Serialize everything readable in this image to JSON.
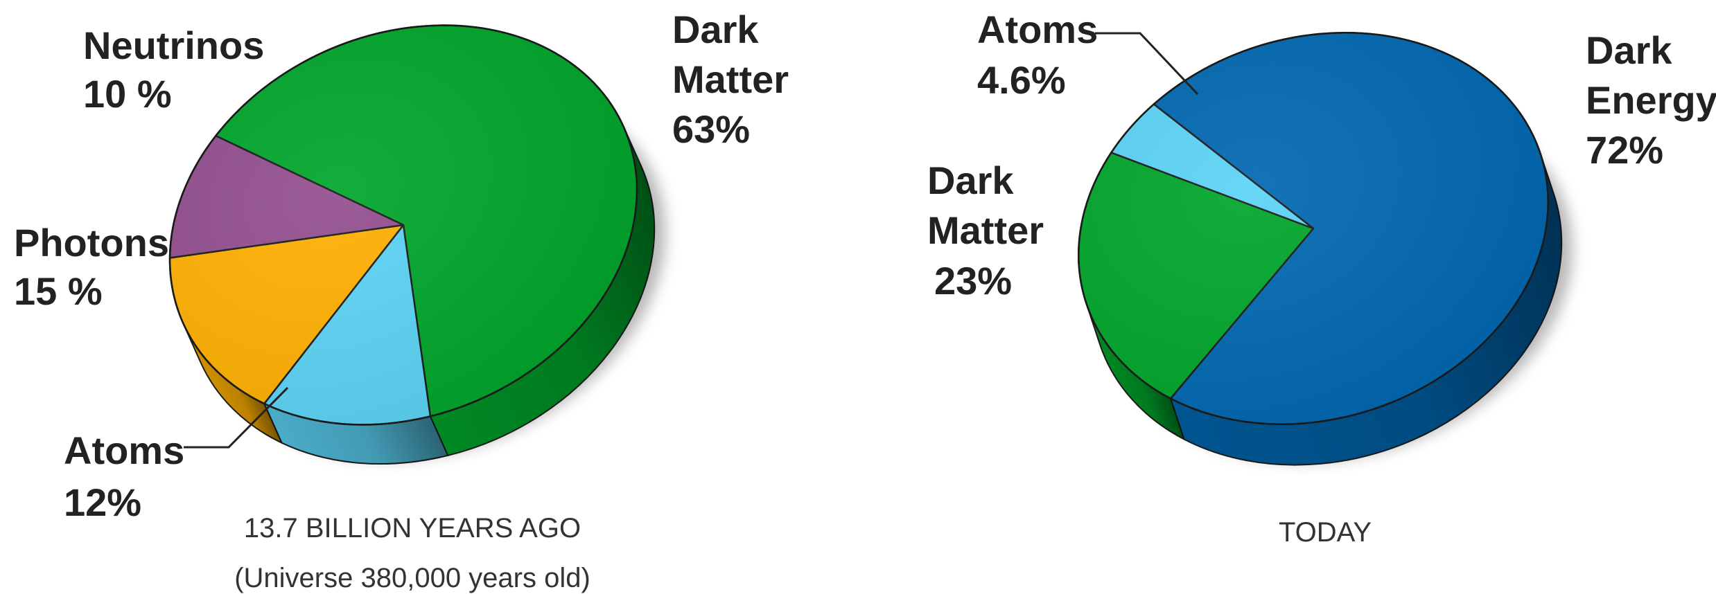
{
  "chart_data": [
    {
      "type": "pie",
      "caption_line1": "13.7 BILLION YEARS AGO",
      "caption_line2": "(Universe 380,000 years old)",
      "slices": [
        {
          "name_lines": [
            "Dark",
            "Matter"
          ],
          "percent_label": "63%",
          "value": 63,
          "color": "#00A62B"
        },
        {
          "name_lines": [
            "Atoms"
          ],
          "percent_label": "12%",
          "value": 12,
          "color": "#5BD3F5"
        },
        {
          "name_lines": [
            "Photons"
          ],
          "percent_label": "15 %",
          "value": 15,
          "color": "#FFB000"
        },
        {
          "name_lines": [
            "Neutrinos"
          ],
          "percent_label": "10 %",
          "value": 10,
          "color": "#924E8F"
        }
      ]
    },
    {
      "type": "pie",
      "caption_line1": "TODAY",
      "slices": [
        {
          "name_lines": [
            "Dark",
            "Energy"
          ],
          "percent_label": "72%",
          "value": 72,
          "color": "#0068B1"
        },
        {
          "name_lines": [
            "Dark",
            "Matter"
          ],
          "percent_label": "23%",
          "value": 23,
          "color": "#00A62B"
        },
        {
          "name_lines": [
            "Atoms"
          ],
          "percent_label": "4.6%",
          "value": 4.6,
          "color": "#5BD3F5"
        }
      ]
    }
  ]
}
